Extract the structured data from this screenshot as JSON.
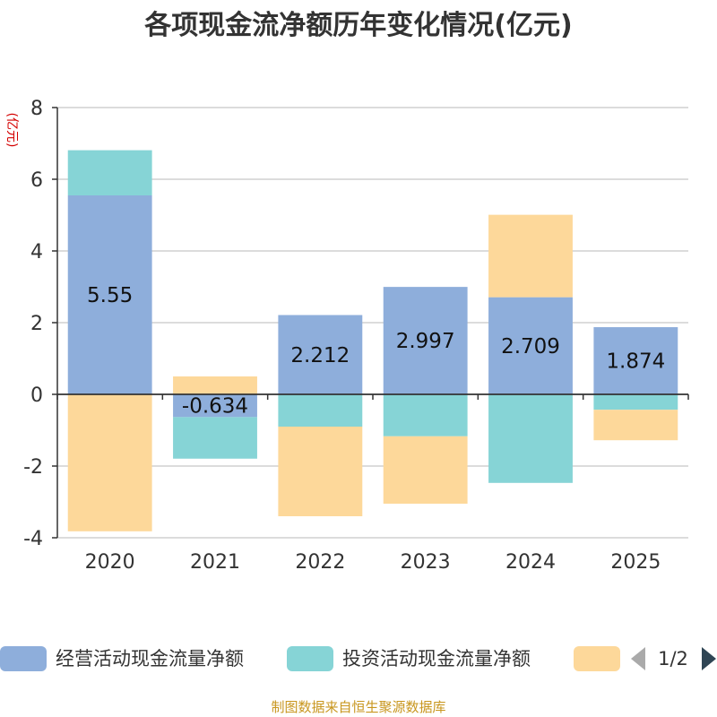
{
  "chart_data": {
    "type": "bar",
    "stacked": true,
    "title": "各项现金流净额历年变化情况(亿元)",
    "ylabel": "(亿元)",
    "xlabel": "",
    "ylim": [
      -4,
      8
    ],
    "yticks": [
      -4,
      -2,
      0,
      2,
      4,
      6,
      8
    ],
    "grid": true,
    "categories": [
      "2020",
      "2021",
      "2022",
      "2023",
      "2024",
      "2025"
    ],
    "series": [
      {
        "name": "经营活动现金流量净额",
        "color": "#8eaedb",
        "values": [
          5.55,
          -0.634,
          2.212,
          2.997,
          2.709,
          1.874
        ],
        "labels": [
          "5.55",
          "-0.634",
          "2.212",
          "2.997",
          "2.709",
          "1.874"
        ]
      },
      {
        "name": "投资活动现金流量净额",
        "color": "#86d4d6",
        "values": [
          1.26,
          -1.16,
          -0.9,
          -1.17,
          -2.47,
          -0.43
        ]
      },
      {
        "color": "#fdd89a",
        "values": [
          -3.82,
          0.5,
          -2.5,
          -1.88,
          2.3,
          -0.85
        ]
      }
    ],
    "legend": {
      "position": "bottom",
      "page": "1/2"
    }
  },
  "footer": "制图数据来自恒生聚源数据库"
}
